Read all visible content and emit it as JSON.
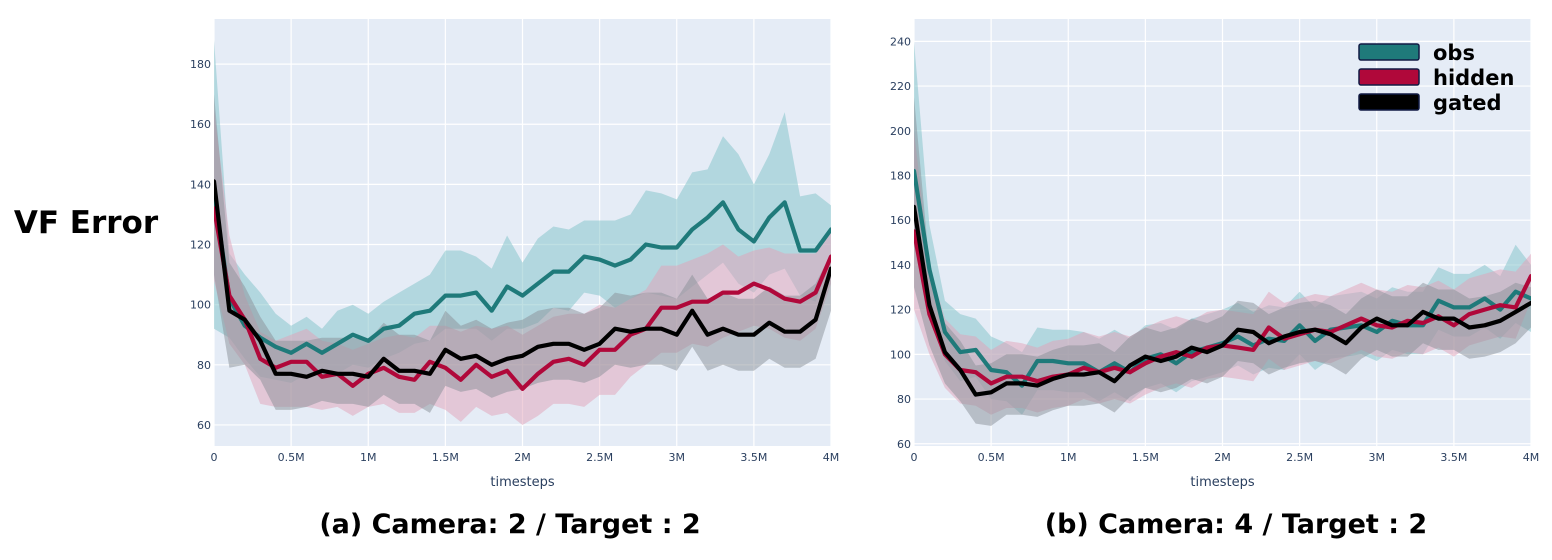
{
  "figure": {
    "y_title": "VF Error"
  },
  "colors": {
    "obs": "#1f7a7a",
    "hidden": "#b0083a",
    "gated": "#000000",
    "obs_band": "#80c2c8",
    "hidden_band": "#e1a2b8",
    "gated_band": "#8a9097"
  },
  "chart_data": [
    {
      "type": "line",
      "caption": "(a) Camera: 2 / Target : 2",
      "xlabel": "timesteps",
      "ylabel": "",
      "xlim": [
        0,
        4000000
      ],
      "ylim": [
        53,
        195
      ],
      "x_ticks": [
        0,
        500000,
        1000000,
        1500000,
        2000000,
        2500000,
        3000000,
        3500000,
        4000000
      ],
      "x_tick_labels": [
        "0",
        "0.5M",
        "1M",
        "1.5M",
        "2M",
        "2.5M",
        "3M",
        "3.5M",
        "4M"
      ],
      "y_ticks": [
        60,
        80,
        100,
        120,
        140,
        160,
        180
      ],
      "y_tick_labels": [
        "60",
        "80",
        "100",
        "120",
        "140",
        "160",
        "180"
      ],
      "grid": true,
      "legend": null,
      "x": [
        0,
        100000,
        200000,
        300000,
        400000,
        500000,
        600000,
        700000,
        800000,
        900000,
        1000000,
        1100000,
        1200000,
        1300000,
        1400000,
        1500000,
        1600000,
        1700000,
        1800000,
        1900000,
        2000000,
        2100000,
        2200000,
        2300000,
        2400000,
        2500000,
        2600000,
        2700000,
        2800000,
        2900000,
        3000000,
        3100000,
        3200000,
        3300000,
        3400000,
        3500000,
        3600000,
        3700000,
        3800000,
        3900000,
        4000000
      ],
      "series": [
        {
          "key": "obs",
          "values": [
            137,
            102,
            93,
            89,
            86,
            84,
            87,
            84,
            87,
            90,
            88,
            92,
            93,
            97,
            98,
            103,
            103,
            104,
            98,
            106,
            103,
            107,
            111,
            111,
            116,
            115,
            113,
            115,
            120,
            119,
            119,
            125,
            129,
            134,
            125,
            121,
            129,
            134,
            118,
            118,
            125
          ],
          "upper": [
            188,
            117,
            110,
            104,
            97,
            93,
            96,
            92,
            98,
            100,
            97,
            101,
            104,
            107,
            110,
            118,
            118,
            116,
            112,
            123,
            114,
            122,
            126,
            125,
            128,
            128,
            128,
            130,
            138,
            137,
            135,
            144,
            145,
            156,
            150,
            140,
            150,
            164,
            136,
            137,
            133
          ],
          "lower": [
            92,
            89,
            82,
            76,
            75,
            74,
            77,
            76,
            77,
            80,
            79,
            82,
            84,
            87,
            88,
            92,
            92,
            92,
            88,
            92,
            92,
            94,
            99,
            98,
            104,
            103,
            99,
            102,
            104,
            103,
            102,
            106,
            110,
            114,
            107,
            104,
            110,
            112,
            103,
            101,
            115
          ]
        },
        {
          "key": "hidden",
          "values": [
            132,
            103,
            95,
            82,
            79,
            81,
            81,
            76,
            77,
            73,
            77,
            79,
            76,
            75,
            81,
            79,
            75,
            80,
            76,
            78,
            72,
            77,
            81,
            82,
            80,
            85,
            85,
            90,
            92,
            99,
            99,
            101,
            101,
            104,
            104,
            107,
            105,
            102,
            101,
            104,
            116
          ],
          "upper": [
            165,
            123,
            103,
            91,
            88,
            90,
            92,
            88,
            87,
            85,
            87,
            89,
            90,
            89,
            93,
            93,
            91,
            93,
            92,
            93,
            90,
            93,
            96,
            97,
            97,
            100,
            99,
            102,
            105,
            113,
            113,
            115,
            117,
            120,
            116,
            118,
            119,
            117,
            117,
            117,
            126
          ],
          "lower": [
            108,
            87,
            80,
            67,
            66,
            66,
            66,
            65,
            66,
            63,
            66,
            67,
            64,
            64,
            67,
            65,
            61,
            66,
            63,
            64,
            60,
            63,
            67,
            67,
            66,
            70,
            70,
            76,
            80,
            84,
            84,
            87,
            86,
            89,
            91,
            93,
            92,
            89,
            88,
            92,
            107
          ]
        },
        {
          "key": "gated",
          "values": [
            141,
            98,
            95,
            88,
            77,
            77,
            76,
            78,
            77,
            77,
            76,
            82,
            78,
            78,
            77,
            85,
            82,
            83,
            80,
            82,
            83,
            86,
            87,
            87,
            85,
            87,
            92,
            91,
            92,
            92,
            90,
            98,
            90,
            92,
            90,
            90,
            94,
            91,
            91,
            95,
            112
          ],
          "upper": [
            170,
            114,
            106,
            96,
            88,
            88,
            88,
            89,
            89,
            89,
            88,
            94,
            90,
            90,
            88,
            98,
            93,
            95,
            92,
            94,
            95,
            98,
            99,
            99,
            97,
            99,
            104,
            103,
            104,
            104,
            102,
            110,
            102,
            104,
            102,
            102,
            106,
            103,
            103,
            107,
            117
          ],
          "lower": [
            110,
            79,
            80,
            75,
            65,
            65,
            66,
            68,
            67,
            67,
            66,
            70,
            67,
            67,
            64,
            73,
            71,
            72,
            69,
            71,
            72,
            74,
            75,
            75,
            74,
            76,
            80,
            79,
            80,
            80,
            78,
            86,
            78,
            80,
            78,
            78,
            82,
            79,
            79,
            82,
            98
          ]
        }
      ]
    },
    {
      "type": "line",
      "caption": "(b) Camera: 4 / Target : 2",
      "xlabel": "timesteps",
      "ylabel": "",
      "xlim": [
        0,
        4000000
      ],
      "ylim": [
        59,
        250
      ],
      "x_ticks": [
        0,
        500000,
        1000000,
        1500000,
        2000000,
        2500000,
        3000000,
        3500000,
        4000000
      ],
      "x_tick_labels": [
        "0",
        "0.5M",
        "1M",
        "1.5M",
        "2M",
        "2.5M",
        "3M",
        "3.5M",
        "4M"
      ],
      "y_ticks": [
        60,
        80,
        100,
        120,
        140,
        160,
        180,
        200,
        220,
        240
      ],
      "y_tick_labels": [
        "60",
        "80",
        "100",
        "120",
        "140",
        "160",
        "180",
        "200",
        "220",
        "240"
      ],
      "grid": true,
      "legend": "top-right",
      "legend_entries": [
        "obs",
        "hidden",
        "gated"
      ],
      "x": [
        0,
        100000,
        200000,
        300000,
        400000,
        500000,
        600000,
        700000,
        800000,
        900000,
        1000000,
        1100000,
        1200000,
        1300000,
        1400000,
        1500000,
        1600000,
        1700000,
        1800000,
        1900000,
        2000000,
        2100000,
        2200000,
        2300000,
        2400000,
        2500000,
        2600000,
        2700000,
        2800000,
        2900000,
        3000000,
        3100000,
        3200000,
        3300000,
        3400000,
        3500000,
        3600000,
        3700000,
        3800000,
        3900000,
        4000000
      ],
      "series": [
        {
          "key": "obs",
          "values": [
            182,
            138,
            110,
            101,
            102,
            93,
            92,
            86,
            97,
            97,
            96,
            96,
            92,
            96,
            92,
            98,
            100,
            96,
            101,
            103,
            105,
            108,
            104,
            107,
            106,
            113,
            106,
            111,
            112,
            113,
            110,
            115,
            113,
            113,
            124,
            121,
            121,
            125,
            120,
            128,
            125
          ],
          "upper": [
            240,
            158,
            124,
            118,
            116,
            108,
            105,
            101,
            112,
            111,
            111,
            110,
            107,
            111,
            107,
            113,
            114,
            111,
            116,
            118,
            120,
            123,
            119,
            122,
            121,
            128,
            121,
            126,
            127,
            128,
            125,
            130,
            128,
            128,
            139,
            136,
            136,
            140,
            135,
            149,
            140
          ],
          "lower": [
            148,
            120,
            97,
            88,
            90,
            80,
            79,
            73,
            84,
            84,
            83,
            83,
            79,
            83,
            79,
            85,
            87,
            83,
            88,
            90,
            92,
            95,
            91,
            94,
            93,
            100,
            93,
            98,
            99,
            100,
            97,
            102,
            100,
            100,
            111,
            108,
            108,
            112,
            107,
            114,
            110
          ]
        },
        {
          "key": "hidden",
          "values": [
            155,
            118,
            100,
            93,
            92,
            87,
            90,
            90,
            88,
            90,
            91,
            94,
            92,
            94,
            92,
            96,
            99,
            101,
            99,
            103,
            104,
            103,
            102,
            112,
            107,
            109,
            111,
            110,
            113,
            116,
            113,
            112,
            115,
            114,
            117,
            113,
            118,
            120,
            122,
            121,
            135
          ],
          "upper": [
            200,
            140,
            116,
            109,
            108,
            102,
            106,
            105,
            103,
            106,
            107,
            110,
            108,
            110,
            108,
            112,
            115,
            117,
            115,
            119,
            120,
            119,
            118,
            128,
            123,
            125,
            127,
            126,
            129,
            132,
            129,
            128,
            131,
            130,
            133,
            129,
            134,
            136,
            138,
            137,
            145
          ],
          "lower": [
            120,
            100,
            85,
            78,
            77,
            73,
            76,
            76,
            74,
            76,
            77,
            80,
            78,
            80,
            78,
            82,
            85,
            87,
            85,
            89,
            90,
            89,
            88,
            98,
            93,
            95,
            97,
            96,
            99,
            102,
            99,
            98,
            101,
            100,
            103,
            99,
            104,
            106,
            108,
            107,
            124
          ]
        },
        {
          "key": "gated",
          "values": [
            166,
            122,
            101,
            93,
            82,
            83,
            87,
            87,
            86,
            89,
            91,
            91,
            92,
            88,
            95,
            99,
            97,
            99,
            103,
            101,
            104,
            111,
            110,
            105,
            108,
            110,
            111,
            109,
            105,
            112,
            116,
            113,
            113,
            119,
            116,
            116,
            112,
            113,
            115,
            119,
            123
          ],
          "upper": [
            215,
            140,
            114,
            106,
            95,
            96,
            100,
            100,
            99,
            102,
            104,
            104,
            105,
            101,
            108,
            112,
            110,
            112,
            116,
            114,
            117,
            124,
            123,
            118,
            121,
            123,
            124,
            122,
            118,
            125,
            129,
            126,
            126,
            132,
            129,
            129,
            125,
            126,
            128,
            132,
            130
          ],
          "lower": [
            130,
            104,
            87,
            79,
            69,
            68,
            73,
            73,
            72,
            75,
            77,
            77,
            78,
            74,
            81,
            85,
            83,
            85,
            89,
            87,
            90,
            97,
            96,
            91,
            94,
            96,
            97,
            95,
            91,
            98,
            102,
            99,
            99,
            105,
            102,
            102,
            98,
            99,
            101,
            105,
            112
          ]
        }
      ]
    }
  ]
}
